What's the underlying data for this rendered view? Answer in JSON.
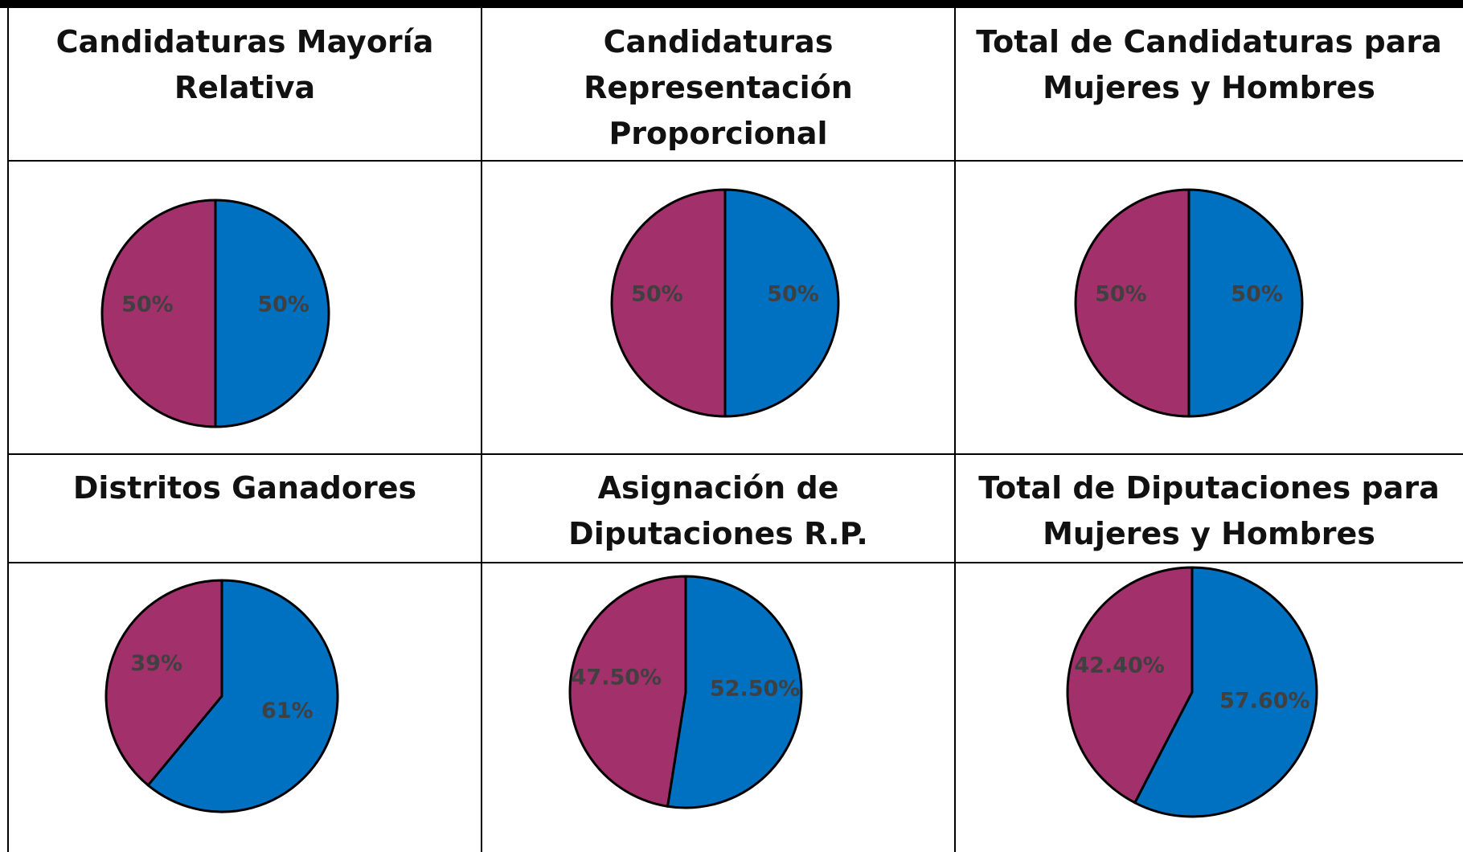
{
  "chart_data": [
    {
      "type": "pie",
      "title": "Candidaturas Mayoría Relativa",
      "values": [
        50,
        50
      ],
      "value_labels": [
        "50%",
        "50%"
      ],
      "colors": [
        "#0070c0",
        "#a2306a"
      ]
    },
    {
      "type": "pie",
      "title": "Candidaturas Representación Proporcional",
      "values": [
        50,
        50
      ],
      "value_labels": [
        "50%",
        "50%"
      ],
      "colors": [
        "#0070c0",
        "#a2306a"
      ]
    },
    {
      "type": "pie",
      "title": "Total de Candidaturas para Mujeres y Hombres",
      "values": [
        50,
        50
      ],
      "value_labels": [
        "50%",
        "50%"
      ],
      "colors": [
        "#0070c0",
        "#a2306a"
      ]
    },
    {
      "type": "pie",
      "title": "Distritos Ganadores",
      "values": [
        61,
        39
      ],
      "value_labels": [
        "61%",
        "39%"
      ],
      "colors": [
        "#0070c0",
        "#a2306a"
      ]
    },
    {
      "type": "pie",
      "title": "Asignación de Diputaciones R.P.",
      "values": [
        52.5,
        47.5
      ],
      "value_labels": [
        "52.50%",
        "47.50%"
      ],
      "colors": [
        "#0070c0",
        "#a2306a"
      ]
    },
    {
      "type": "pie",
      "title": "Total de Diputaciones para Mujeres y Hombres",
      "values": [
        57.6,
        42.4
      ],
      "value_labels": [
        "57.60%",
        "42.40%"
      ],
      "colors": [
        "#0070c0",
        "#a2306a"
      ]
    }
  ]
}
